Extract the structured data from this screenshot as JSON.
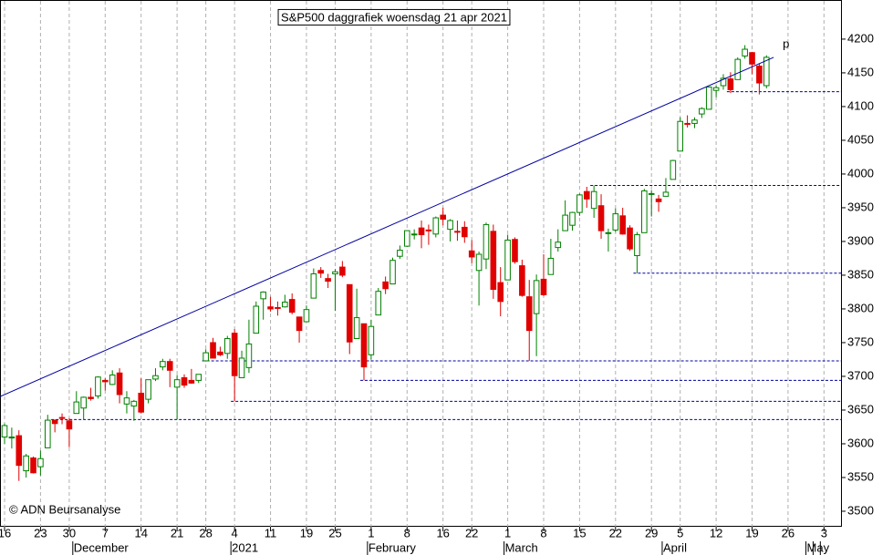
{
  "chart_data": {
    "type": "candlestick",
    "title": "S&P500 daggrafiek woensdag 21 apr 2021",
    "annotation": "© ADN Beursanalyse",
    "trendline_label": "p",
    "categories": [
      "16",
      null,
      null,
      null,
      null,
      "23",
      null,
      null,
      null,
      "30",
      null,
      null,
      null,
      null,
      "7",
      null,
      null,
      null,
      null,
      "14",
      null,
      null,
      null,
      null,
      "21",
      null,
      null,
      null,
      "28",
      null,
      null,
      null,
      "4",
      null,
      null,
      null,
      null,
      "11",
      null,
      null,
      null,
      null,
      "19",
      null,
      null,
      null,
      "25",
      null,
      null,
      null,
      null,
      "1",
      null,
      null,
      null,
      null,
      "8",
      null,
      null,
      null,
      null,
      "16",
      null,
      null,
      null,
      "22",
      null,
      null,
      null,
      null,
      "1",
      null,
      null,
      null,
      null,
      "8",
      null,
      null,
      null,
      null,
      "15",
      null,
      null,
      null,
      null,
      "22",
      null,
      null,
      null,
      null,
      "29",
      null,
      null,
      null,
      "5",
      null,
      null,
      null,
      null,
      "12",
      null,
      null,
      null,
      null,
      "19",
      null,
      null,
      null,
      null,
      "26",
      null,
      null,
      null,
      null,
      "3"
    ],
    "months": [
      null,
      null,
      null,
      null,
      null,
      null,
      null,
      null,
      null,
      null,
      "December",
      null,
      null,
      null,
      null,
      null,
      null,
      null,
      null,
      null,
      null,
      null,
      null,
      null,
      null,
      null,
      null,
      null,
      null,
      null,
      null,
      null,
      "2021",
      null,
      null,
      null,
      null,
      null,
      null,
      null,
      null,
      null,
      null,
      null,
      null,
      null,
      null,
      null,
      null,
      null,
      null,
      "February",
      null,
      null,
      null,
      null,
      null,
      null,
      null,
      null,
      null,
      null,
      null,
      null,
      null,
      null,
      null,
      null,
      null,
      null,
      "March",
      null,
      null,
      null,
      null,
      null,
      null,
      null,
      null,
      null,
      null,
      null,
      null,
      null,
      null,
      null,
      null,
      null,
      null,
      null,
      null,
      null,
      "April",
      null,
      null,
      null,
      null,
      null,
      null,
      null,
      null,
      null,
      null,
      null,
      null,
      null,
      null,
      null,
      null,
      null,
      null,
      null,
      "May"
    ],
    "open": [
      3610,
      3610,
      3612,
      3560,
      3579,
      3566,
      3594,
      3635,
      3639,
      3634,
      3645,
      3653,
      3669,
      3671,
      3694,
      3688,
      3705,
      3659,
      3656,
      3675,
      3666,
      3696,
      3714,
      3722,
      3684,
      3698,
      3694,
      3694,
      3723,
      3750,
      3736,
      3734,
      3764,
      3698,
      3713,
      3764,
      3815,
      3803,
      3802,
      3803,
      3814,
      3788,
      3781,
      3816,
      3857,
      3845,
      3852,
      3862,
      3836,
      3756,
      3778,
      3732,
      3791,
      3840,
      3837,
      3878,
      3893,
      3911,
      3920,
      3917,
      3911,
      3939,
      3918,
      3915,
      3921,
      3886,
      3857,
      3874,
      3915,
      3839,
      3843,
      3903,
      3864,
      3818,
      3793,
      3844,
      3851,
      3891,
      3916,
      3924,
      3943,
      3974,
      3949,
      3953,
      3913,
      3917,
      3938,
      3920,
      3879,
      3913,
      3970,
      3963,
      3967,
      3992,
      4034,
      4075,
      4075,
      4089,
      4096,
      4124,
      4131,
      4141,
      4140,
      4175,
      4180,
      4160,
      4131,
      null,
      null,
      null,
      null,
      null,
      null,
      null,
      null
    ],
    "high": [
      3630,
      3624,
      3620,
      3585,
      3581,
      3590,
      3643,
      3636,
      3645,
      3638,
      3678,
      3670,
      3683,
      3700,
      3697,
      3709,
      3712,
      3678,
      3665,
      3697,
      3695,
      3712,
      3726,
      3726,
      3702,
      3703,
      3711,
      3703,
      3740,
      3757,
      3744,
      3760,
      3770,
      3738,
      3784,
      3811,
      3826,
      3818,
      3811,
      3821,
      3823,
      3788,
      3805,
      3860,
      3862,
      3852,
      3859,
      3871,
      3836,
      3830,
      3778,
      3784,
      3831,
      3848,
      3876,
      3894,
      3916,
      3918,
      3931,
      3925,
      3937,
      3950,
      3933,
      3931,
      3930,
      3902,
      3885,
      3928,
      3925,
      3862,
      3910,
      3906,
      3873,
      3843,
      3851,
      3881,
      3904,
      3918,
      3961,
      3944,
      3971,
      3981,
      3983,
      3970,
      3919,
      3949,
      3950,
      3924,
      3914,
      3978,
      3976,
      3969,
      3994,
      4021,
      4084,
      4087,
      4084,
      4099,
      4129,
      4131,
      4148,
      4151,
      4173,
      4191,
      4181,
      4164,
      4176,
      null,
      null,
      null,
      null,
      null,
      null,
      null,
      null
    ],
    "low": [
      3600,
      3593,
      3545,
      3550,
      3556,
      3553,
      3594,
      3617,
      3629,
      3595,
      3645,
      3636,
      3664,
      3667,
      3679,
      3687,
      3660,
      3645,
      3634,
      3645,
      3660,
      3693,
      3709,
      3684,
      3636,
      3683,
      3689,
      3690,
      3723,
      3727,
      3730,
      3726,
      3663,
      3698,
      3705,
      3764,
      3784,
      3796,
      3790,
      3802,
      3792,
      3750,
      3781,
      3816,
      3846,
      3831,
      3797,
      3847,
      3733,
      3756,
      3694,
      3725,
      3791,
      3822,
      3837,
      3874,
      3892,
      3903,
      3890,
      3895,
      3906,
      3924,
      3900,
      3901,
      3898,
      3868,
      3805,
      3859,
      3815,
      3789,
      3843,
      3867,
      3818,
      3723,
      3730,
      3819,
      3851,
      3885,
      3916,
      3916,
      3938,
      3950,
      3935,
      3904,
      3885,
      3914,
      3910,
      3886,
      3853,
      3913,
      3937,
      3944,
      3967,
      3992,
      4034,
      4069,
      4068,
      4083,
      4096,
      4114,
      4125,
      4120,
      4140,
      4171,
      4148,
      4118,
      4127,
      null,
      null,
      null,
      null,
      null,
      null,
      null,
      null
    ],
    "close": [
      3627,
      3610,
      3568,
      3582,
      3557,
      3578,
      3635,
      3630,
      3638,
      3622,
      3662,
      3669,
      3667,
      3699,
      3692,
      3702,
      3673,
      3668,
      3663,
      3647,
      3695,
      3701,
      3722,
      3709,
      3695,
      3687,
      3690,
      3703,
      3735,
      3727,
      3732,
      3756,
      3701,
      3727,
      3748,
      3804,
      3825,
      3800,
      3801,
      3810,
      3795,
      3768,
      3799,
      3852,
      3853,
      3841,
      3855,
      3850,
      3751,
      3787,
      3714,
      3774,
      3826,
      3830,
      3872,
      3887,
      3916,
      3911,
      3910,
      3916,
      3935,
      3933,
      3931,
      3914,
      3907,
      3877,
      3881,
      3925,
      3829,
      3811,
      3902,
      3870,
      3820,
      3768,
      3842,
      3821,
      3875,
      3899,
      3939,
      3943,
      3969,
      3963,
      3974,
      3916,
      3913,
      3941,
      3911,
      3889,
      3910,
      3975,
      3971,
      3959,
      3973,
      4020,
      4078,
      4074,
      4080,
      4097,
      4129,
      4128,
      4142,
      4125,
      4170,
      4185,
      4163,
      4135,
      4173,
      null,
      null,
      null,
      null,
      null,
      null,
      null,
      null
    ],
    "up_color": "#008000",
    "down_color": "#e00000",
    "trendline": [
      3670,
      4173
    ],
    "trendline_color": "#0000a0",
    "levels": [
      3636,
      3663,
      3694,
      3723,
      3853,
      3983,
      4122
    ],
    "ylim": [
      3477,
      4258
    ],
    "yticks": [
      3500,
      3550,
      3600,
      3650,
      3700,
      3750,
      3800,
      3850,
      3900,
      3950,
      4000,
      4050,
      4100,
      4150,
      4200
    ],
    "grid": true
  }
}
